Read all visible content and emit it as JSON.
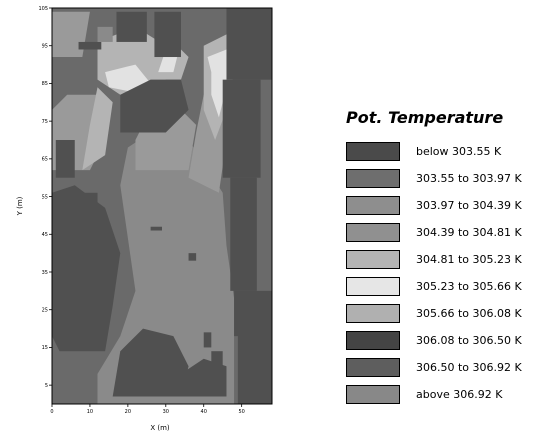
{
  "chart_data": {
    "type": "heatmap",
    "xlabel": "X (m)",
    "ylabel": "Y (m)",
    "xlim": [
      0,
      58
    ],
    "ylim": [
      0,
      105
    ],
    "xticks": [
      0,
      10,
      20,
      30,
      40,
      50
    ],
    "yticks": [
      5,
      15,
      25,
      35,
      45,
      55,
      65,
      75,
      85,
      95,
      105
    ],
    "legend": {
      "title": "Pot. Temperature",
      "placement": "right",
      "entries": [
        {
          "label": "below 303.55 K",
          "color": "#4a4a4a"
        },
        {
          "label": "303.55 to 303.97 K",
          "color": "#6e6e6e"
        },
        {
          "label": "303.97 to 304.39 K",
          "color": "#8e8e8e"
        },
        {
          "label": "304.39 to 304.81 K",
          "color": "#909090"
        },
        {
          "label": "304.81 to 305.23 K",
          "color": "#b4b4b4"
        },
        {
          "label": "305.23 to 305.66 K",
          "color": "#e6e6e6"
        },
        {
          "label": "305.66 to 306.08 K",
          "color": "#b0b0b0"
        },
        {
          "label": "306.08 to 306.50 K",
          "color": "#444444"
        },
        {
          "label": "306.50 to 306.92 K",
          "color": "#5e5e5e"
        },
        {
          "label": "above 306.92 K",
          "color": "#888888"
        }
      ]
    },
    "field_class_colors": [
      "#505050",
      "#6a6a6a",
      "#8a8a8a",
      "#9a9a9a",
      "#b4b4b4",
      "#e2e2e2"
    ]
  }
}
